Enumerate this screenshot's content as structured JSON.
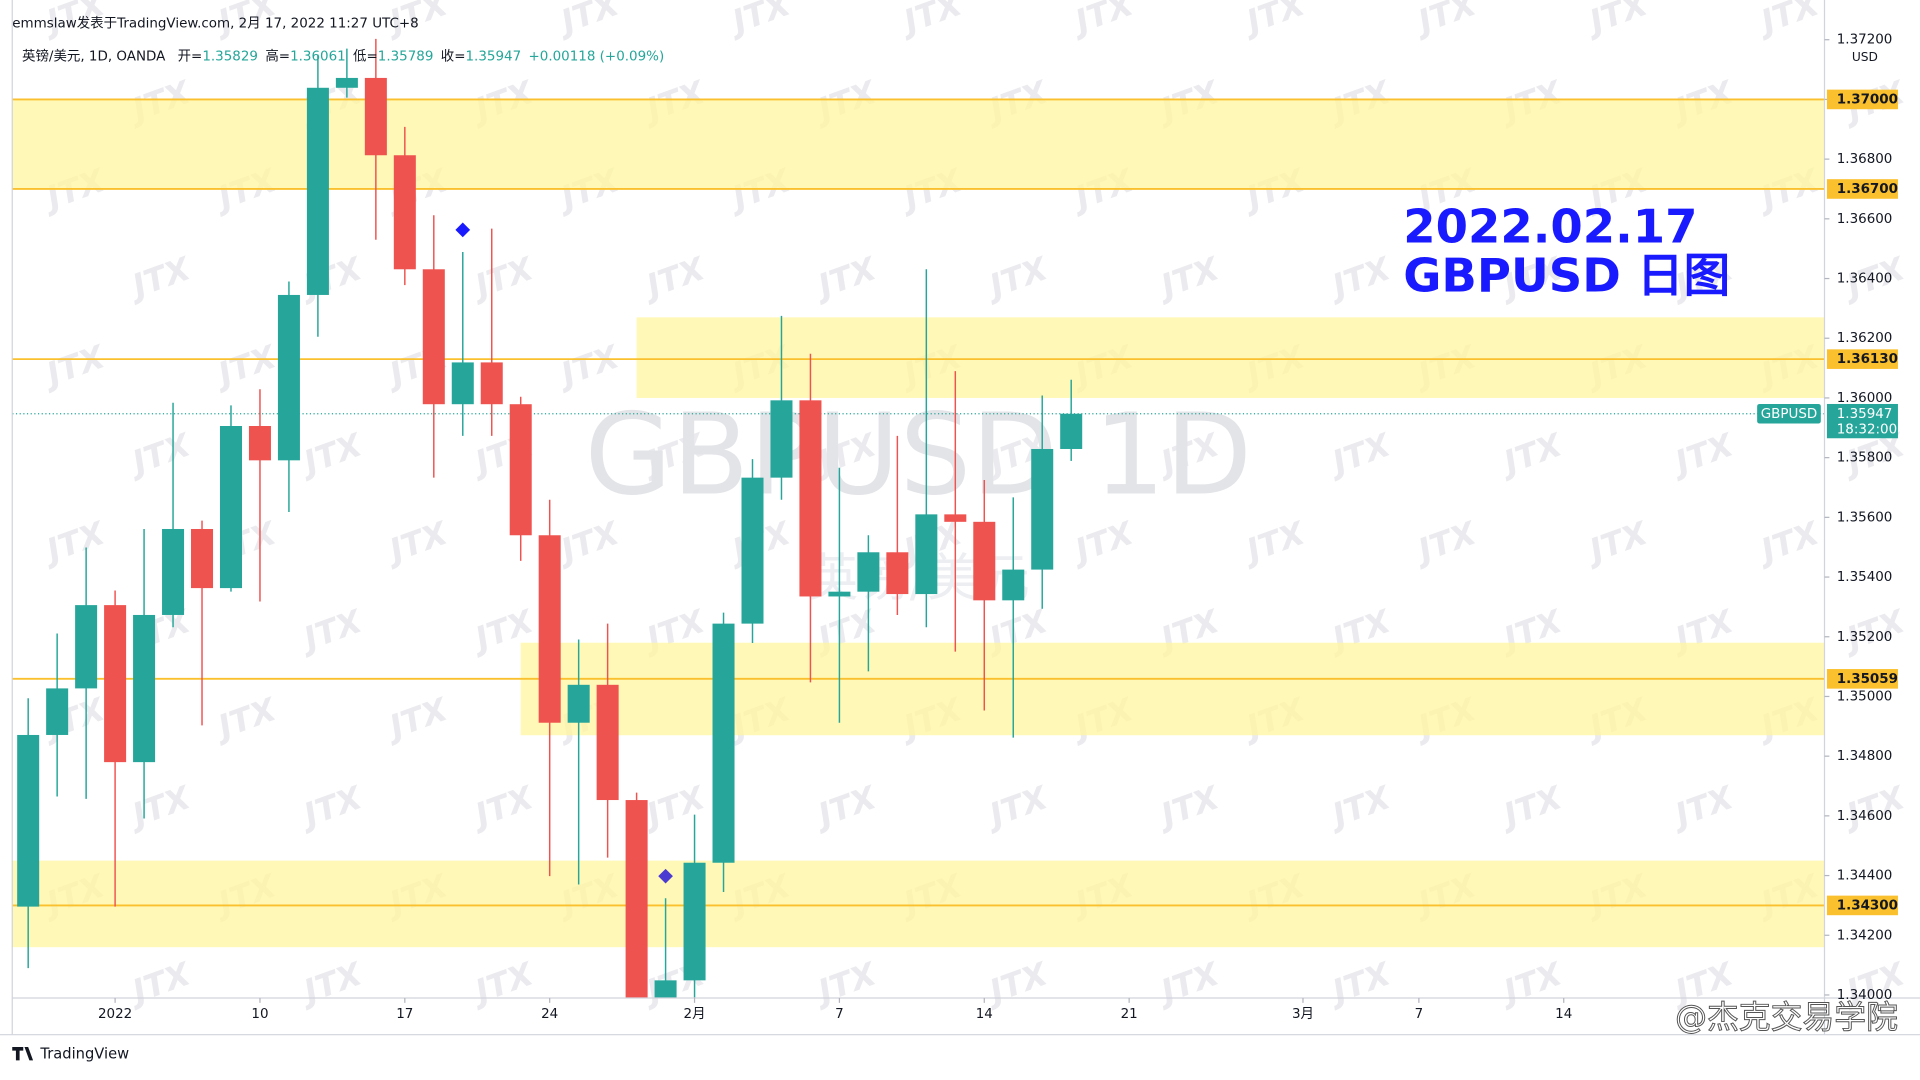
{
  "header": {
    "publisher": "emmslaw发表于TradingView.com, 2月 17, 2022 11:27 UTC+8",
    "symbol": "英镑/美元, 1D, OANDA",
    "ohlc": [
      {
        "key": "开=",
        "value": "1.35829"
      },
      {
        "key": "高=",
        "value": "1.36061"
      },
      {
        "key": "低=",
        "value": "1.35789"
      },
      {
        "key": "收=",
        "value": "1.35947"
      }
    ],
    "change": "+0.00118 (+0.09%)"
  },
  "chart_data": {
    "type": "candlestick",
    "title": "2022.02.17",
    "subtitle": "GBPUSD 日图",
    "watermark": "GBPUSD 1D",
    "watermark_sub": "英镑/美元",
    "currency": "USD",
    "up_color": "#26a69a",
    "down_color": "#ef5350",
    "x": [
      0,
      1,
      2,
      3,
      4,
      5,
      6,
      7,
      8,
      9,
      10,
      11,
      12,
      13,
      14,
      15,
      16,
      17,
      18,
      19,
      20,
      21,
      22,
      23,
      24,
      25,
      26,
      27,
      28,
      29,
      30,
      31,
      32,
      33,
      34,
      35,
      36
    ],
    "open": [
      1.34296,
      1.34871,
      1.35027,
      1.35306,
      1.3478,
      1.35273,
      1.35561,
      1.35363,
      1.35906,
      1.35791,
      1.36345,
      1.37039,
      1.37072,
      1.36813,
      1.36431,
      1.35979,
      1.36119,
      1.35979,
      1.3554,
      1.34912,
      1.35039,
      1.34653,
      1.3396,
      1.34049,
      1.34443,
      1.35244,
      1.35733,
      1.35992,
      1.35335,
      1.35351,
      1.35483,
      1.35343,
      1.3561,
      1.35585,
      1.35322,
      1.35425,
      1.35829
    ],
    "high": [
      1.34994,
      1.35211,
      1.35499,
      1.35355,
      1.35561,
      1.35984,
      1.35589,
      1.35975,
      1.36029,
      1.3639,
      1.3715,
      1.3717,
      1.37203,
      1.36908,
      1.36612,
      1.36489,
      1.36567,
      1.36004,
      1.35659,
      1.35191,
      1.35244,
      1.34678,
      1.34324,
      1.34604,
      1.35281,
      1.35795,
      1.36275,
      1.36148,
      1.35766,
      1.3554,
      1.35873,
      1.36431,
      1.3609,
      1.35725,
      1.35667,
      1.36008,
      1.36061
    ],
    "low": [
      1.3409,
      1.34665,
      1.34657,
      1.34296,
      1.34591,
      1.35232,
      1.34903,
      1.35351,
      1.35318,
      1.35618,
      1.36205,
      1.37006,
      1.3653,
      1.36378,
      1.35733,
      1.35873,
      1.35873,
      1.35454,
      1.34398,
      1.3437,
      1.3446,
      1.3394,
      1.3393,
      1.3398,
      1.34345,
      1.35179,
      1.35659,
      1.35047,
      1.34912,
      1.35084,
      1.35273,
      1.35232,
      1.3515,
      1.34953,
      1.34862,
      1.35294,
      1.35789
    ],
    "close": [
      1.34871,
      1.35027,
      1.35306,
      1.3478,
      1.35273,
      1.35561,
      1.35363,
      1.35906,
      1.35791,
      1.36345,
      1.37039,
      1.37072,
      1.36813,
      1.36431,
      1.35979,
      1.36119,
      1.35979,
      1.3554,
      1.34912,
      1.35039,
      1.34653,
      1.3397,
      1.34049,
      1.34443,
      1.35244,
      1.35733,
      1.35992,
      1.35335,
      1.35351,
      1.35483,
      1.35343,
      1.3561,
      1.35585,
      1.35322,
      1.35425,
      1.35829,
      1.35947
    ],
    "xlim": [
      -0.55,
      62
    ],
    "xticks": [
      {
        "value": 3,
        "label": "2022"
      },
      {
        "value": 8,
        "label": "10"
      },
      {
        "value": 13,
        "label": "17"
      },
      {
        "value": 18,
        "label": "24"
      },
      {
        "value": 23,
        "label": "2月"
      },
      {
        "value": 28,
        "label": "7"
      },
      {
        "value": 33,
        "label": "14"
      },
      {
        "value": 38,
        "label": "21"
      },
      {
        "value": 44,
        "label": "3月"
      },
      {
        "value": 48,
        "label": "7"
      },
      {
        "value": 53,
        "label": "14"
      }
    ],
    "ylim": [
      1.3399,
      1.3721
    ],
    "yticks": [
      {
        "value": 1.34,
        "label": "1.34000"
      },
      {
        "value": 1.342,
        "label": "1.34200"
      },
      {
        "value": 1.344,
        "label": "1.34400"
      },
      {
        "value": 1.346,
        "label": "1.34600"
      },
      {
        "value": 1.348,
        "label": "1.34800"
      },
      {
        "value": 1.35,
        "label": "1.35000"
      },
      {
        "value": 1.352,
        "label": "1.35200"
      },
      {
        "value": 1.354,
        "label": "1.35400"
      },
      {
        "value": 1.356,
        "label": "1.35600"
      },
      {
        "value": 1.358,
        "label": "1.35800"
      },
      {
        "value": 1.36,
        "label": "1.36000"
      },
      {
        "value": 1.362,
        "label": "1.36200"
      },
      {
        "value": 1.364,
        "label": "1.36400"
      },
      {
        "value": 1.366,
        "label": "1.36600"
      },
      {
        "value": 1.368,
        "label": "1.36800"
      },
      {
        "value": 1.37,
        "label": "1.37000"
      },
      {
        "value": 1.372,
        "label": "1.37200"
      }
    ],
    "zones": [
      {
        "from": 1.367,
        "to": 1.37
      },
      {
        "from": 1.36,
        "to": 1.3627,
        "start": 21
      },
      {
        "from": 1.3487,
        "to": 1.3518,
        "start": 17
      },
      {
        "from": 1.3416,
        "to": 1.3445
      }
    ],
    "zone_color": "#fff59d",
    "level_color": "#fbc02d",
    "levels": [
      {
        "value": 1.37,
        "label": "1.37000"
      },
      {
        "value": 1.367,
        "label": "1.36700"
      },
      {
        "value": 1.3613,
        "label": "1.36130"
      },
      {
        "value": 1.35059,
        "label": "1.35059"
      },
      {
        "value": 1.343,
        "label": "1.34300"
      }
    ],
    "last_price": {
      "value": 1.35947,
      "label": "1.35947",
      "name": "GBPUSD",
      "countdown": "18:32:00"
    },
    "markers": [
      {
        "x": 15,
        "value": 1.36563,
        "color": "#1a1aff"
      },
      {
        "x": 22,
        "value": 1.34398,
        "color": "#4b3bd1"
      }
    ]
  },
  "brand": "TradingView",
  "credit": "@杰克交易学院",
  "stamp": "JTX"
}
